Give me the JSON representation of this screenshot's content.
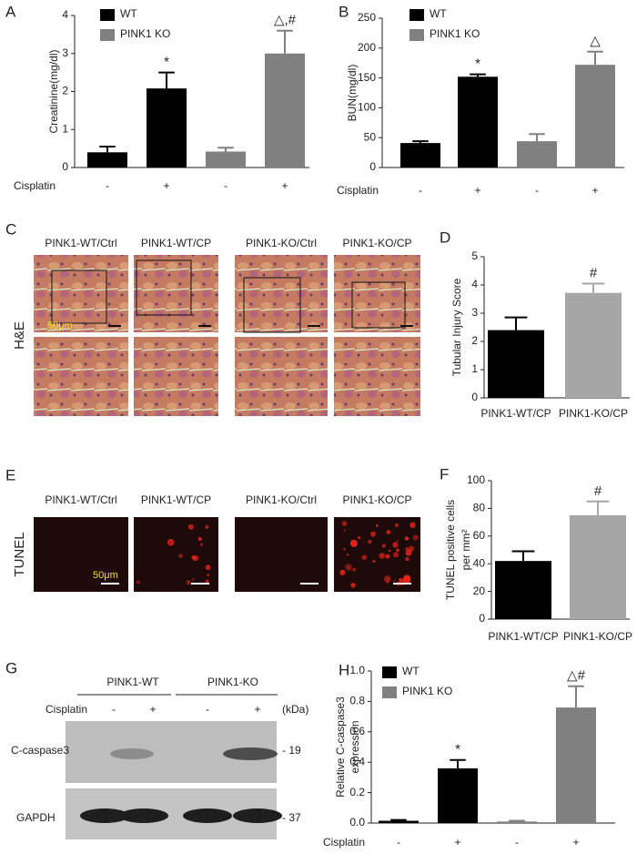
{
  "chart_data": [
    {
      "type": "bar",
      "panel": "A",
      "ylabel": "Creatinine(mg/dl)",
      "xlabel": "Cisplatin",
      "categories": [
        "-",
        "+",
        "-",
        "+"
      ],
      "series": [
        {
          "name": "WT",
          "color": "#000000",
          "values": [
            0.4,
            2.08,
            null,
            null
          ],
          "errors": [
            0.15,
            0.42,
            null,
            null
          ]
        },
        {
          "name": "PINK1 KO",
          "color": "#808080",
          "values": [
            null,
            null,
            0.42,
            3.0
          ],
          "errors": [
            null,
            null,
            0.1,
            0.6
          ]
        }
      ],
      "annotations": [
        null,
        "*",
        null,
        "△,#"
      ],
      "ylim": [
        0,
        4
      ],
      "yticks": [
        0,
        1,
        2,
        3,
        4
      ]
    },
    {
      "type": "bar",
      "panel": "B",
      "ylabel": "BUN(mg/dl)",
      "xlabel": "Cisplatin",
      "categories": [
        "-",
        "+",
        "-",
        "+"
      ],
      "series": [
        {
          "name": "WT",
          "color": "#000000",
          "values": [
            41,
            152,
            null,
            null
          ],
          "errors": [
            3,
            4,
            null,
            null
          ]
        },
        {
          "name": "PINK1 KO",
          "color": "#808080",
          "values": [
            null,
            null,
            44,
            172
          ],
          "errors": [
            null,
            null,
            12,
            22
          ]
        }
      ],
      "annotations": [
        null,
        "*",
        null,
        "△"
      ],
      "ylim": [
        0,
        250
      ],
      "yticks": [
        0,
        50,
        100,
        150,
        200,
        250
      ]
    },
    {
      "type": "bar",
      "panel": "D",
      "ylabel": "Tubular Injury Score",
      "categories": [
        "PINK1-WT/CP",
        "PINK1-KO/CP"
      ],
      "series": [
        {
          "colors": [
            "#000000",
            "#a6a6a6"
          ],
          "values": [
            2.4,
            3.72
          ],
          "errors": [
            0.45,
            0.33
          ]
        }
      ],
      "annotations": [
        null,
        "#"
      ],
      "ylim": [
        0,
        5
      ],
      "yticks": [
        0,
        1,
        2,
        3,
        4,
        5
      ]
    },
    {
      "type": "bar",
      "panel": "F",
      "ylabel": [
        "TUNEL positive cells",
        "per mm²"
      ],
      "categories": [
        "PINK1-WT/CP",
        "PINK1-KO/CP"
      ],
      "series": [
        {
          "colors": [
            "#000000",
            "#a6a6a6"
          ],
          "values": [
            42,
            75
          ],
          "errors": [
            7,
            10
          ]
        }
      ],
      "annotations": [
        null,
        "#"
      ],
      "ylim": [
        0,
        100
      ],
      "yticks": [
        0,
        20,
        40,
        60,
        80,
        100
      ]
    },
    {
      "type": "bar",
      "panel": "H",
      "ylabel": [
        "Relative C-caspase3",
        "expression"
      ],
      "xlabel": "Cisplatin",
      "categories": [
        "-",
        "+",
        "-",
        "+"
      ],
      "series": [
        {
          "name": "WT",
          "color": "#000000",
          "values": [
            0.015,
            0.36,
            null,
            null
          ],
          "errors": [
            0.005,
            0.055,
            null,
            null
          ]
        },
        {
          "name": "PINK1 KO",
          "color": "#808080",
          "values": [
            null,
            null,
            0.01,
            0.76
          ],
          "errors": [
            null,
            null,
            0.005,
            0.14
          ]
        }
      ],
      "annotations": [
        null,
        "*",
        null,
        "△#"
      ],
      "ylim": [
        0,
        1
      ],
      "yticks": [
        {
          "value": 0,
          "label": "0.0"
        },
        0.2,
        0.4,
        0.6,
        0.8,
        {
          "value": 1,
          "label": "1.0"
        }
      ]
    }
  ],
  "panel_c": {
    "panel": "C",
    "stain": "H&E",
    "columns": [
      "PINK1-WT/Ctrl",
      "PINK1-WT/CP",
      "PINK1-KO/Ctrl",
      "PINK1-KO/CP"
    ],
    "scale": "50μm"
  },
  "panel_e": {
    "panel": "E",
    "stain": "TUNEL",
    "columns": [
      "PINK1-WT/Ctrl",
      "PINK1-WT/CP",
      "PINK1-KO/Ctrl",
      "PINK1-KO/CP"
    ],
    "scale": "50μm"
  },
  "panel_g": {
    "panel": "G",
    "groups": [
      "PINK1-WT",
      "PINK1-KO"
    ],
    "treatment": "Cisplatin",
    "conditions": [
      "-",
      "+",
      "-",
      "+"
    ],
    "unit": "(kDa)",
    "bands": [
      {
        "name": "C-caspase3",
        "marker": "- 19"
      },
      {
        "name": "GAPDH",
        "marker": "- 37"
      }
    ]
  }
}
